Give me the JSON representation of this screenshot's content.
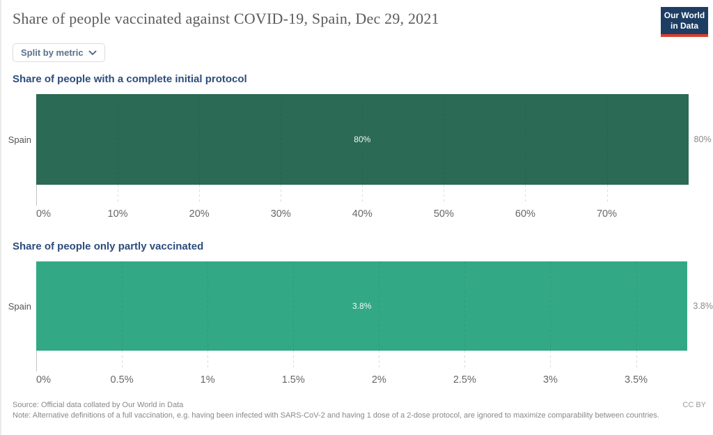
{
  "header": {
    "title": "Share of people vaccinated against COVID-19, Spain, Dec 29, 2021",
    "logo": {
      "line1": "Our World",
      "line2": "in Data"
    }
  },
  "controls": {
    "split_button_label": "Split by metric"
  },
  "chart_data": [
    {
      "type": "bar",
      "orientation": "horizontal",
      "title": "Share of people with a complete initial protocol",
      "categories": [
        "Spain"
      ],
      "values": [
        80
      ],
      "value_labels": [
        "80%"
      ],
      "xlim": [
        0,
        82
      ],
      "xticks": [
        0,
        10,
        20,
        30,
        40,
        50,
        60,
        70
      ],
      "xtick_labels": [
        "0%",
        "10%",
        "20%",
        "30%",
        "40%",
        "50%",
        "60%",
        "70%"
      ],
      "bar_color": "#2b6a54",
      "grid": true,
      "legend": "none"
    },
    {
      "type": "bar",
      "orientation": "horizontal",
      "title": "Share of people only partly vaccinated",
      "categories": [
        "Spain"
      ],
      "values": [
        3.8
      ],
      "value_labels": [
        "3.8%"
      ],
      "xlim": [
        0,
        3.9
      ],
      "xticks": [
        0,
        0.5,
        1,
        1.5,
        2,
        2.5,
        3,
        3.5
      ],
      "xtick_labels": [
        "0%",
        "0.5%",
        "1%",
        "1.5%",
        "2%",
        "2.5%",
        "3%",
        "3.5%"
      ],
      "bar_color": "#32a884",
      "grid": true,
      "legend": "none"
    }
  ],
  "footer": {
    "source": "Source: Official data collated by Our World in Data",
    "license": "CC BY",
    "note": "Note: Alternative definitions of a full vaccination, e.g. having been infected with SARS-CoV-2 and having 1 dose of a 2-dose protocol, are ignored to maximize comparability between countries."
  },
  "colors": {
    "logo_bg": "#1d3d63",
    "logo_accent": "#dc3f2e",
    "heading_blue": "#2d4c7d",
    "title_gray": "#5b5b5b",
    "axis_label_gray": "#666666"
  }
}
